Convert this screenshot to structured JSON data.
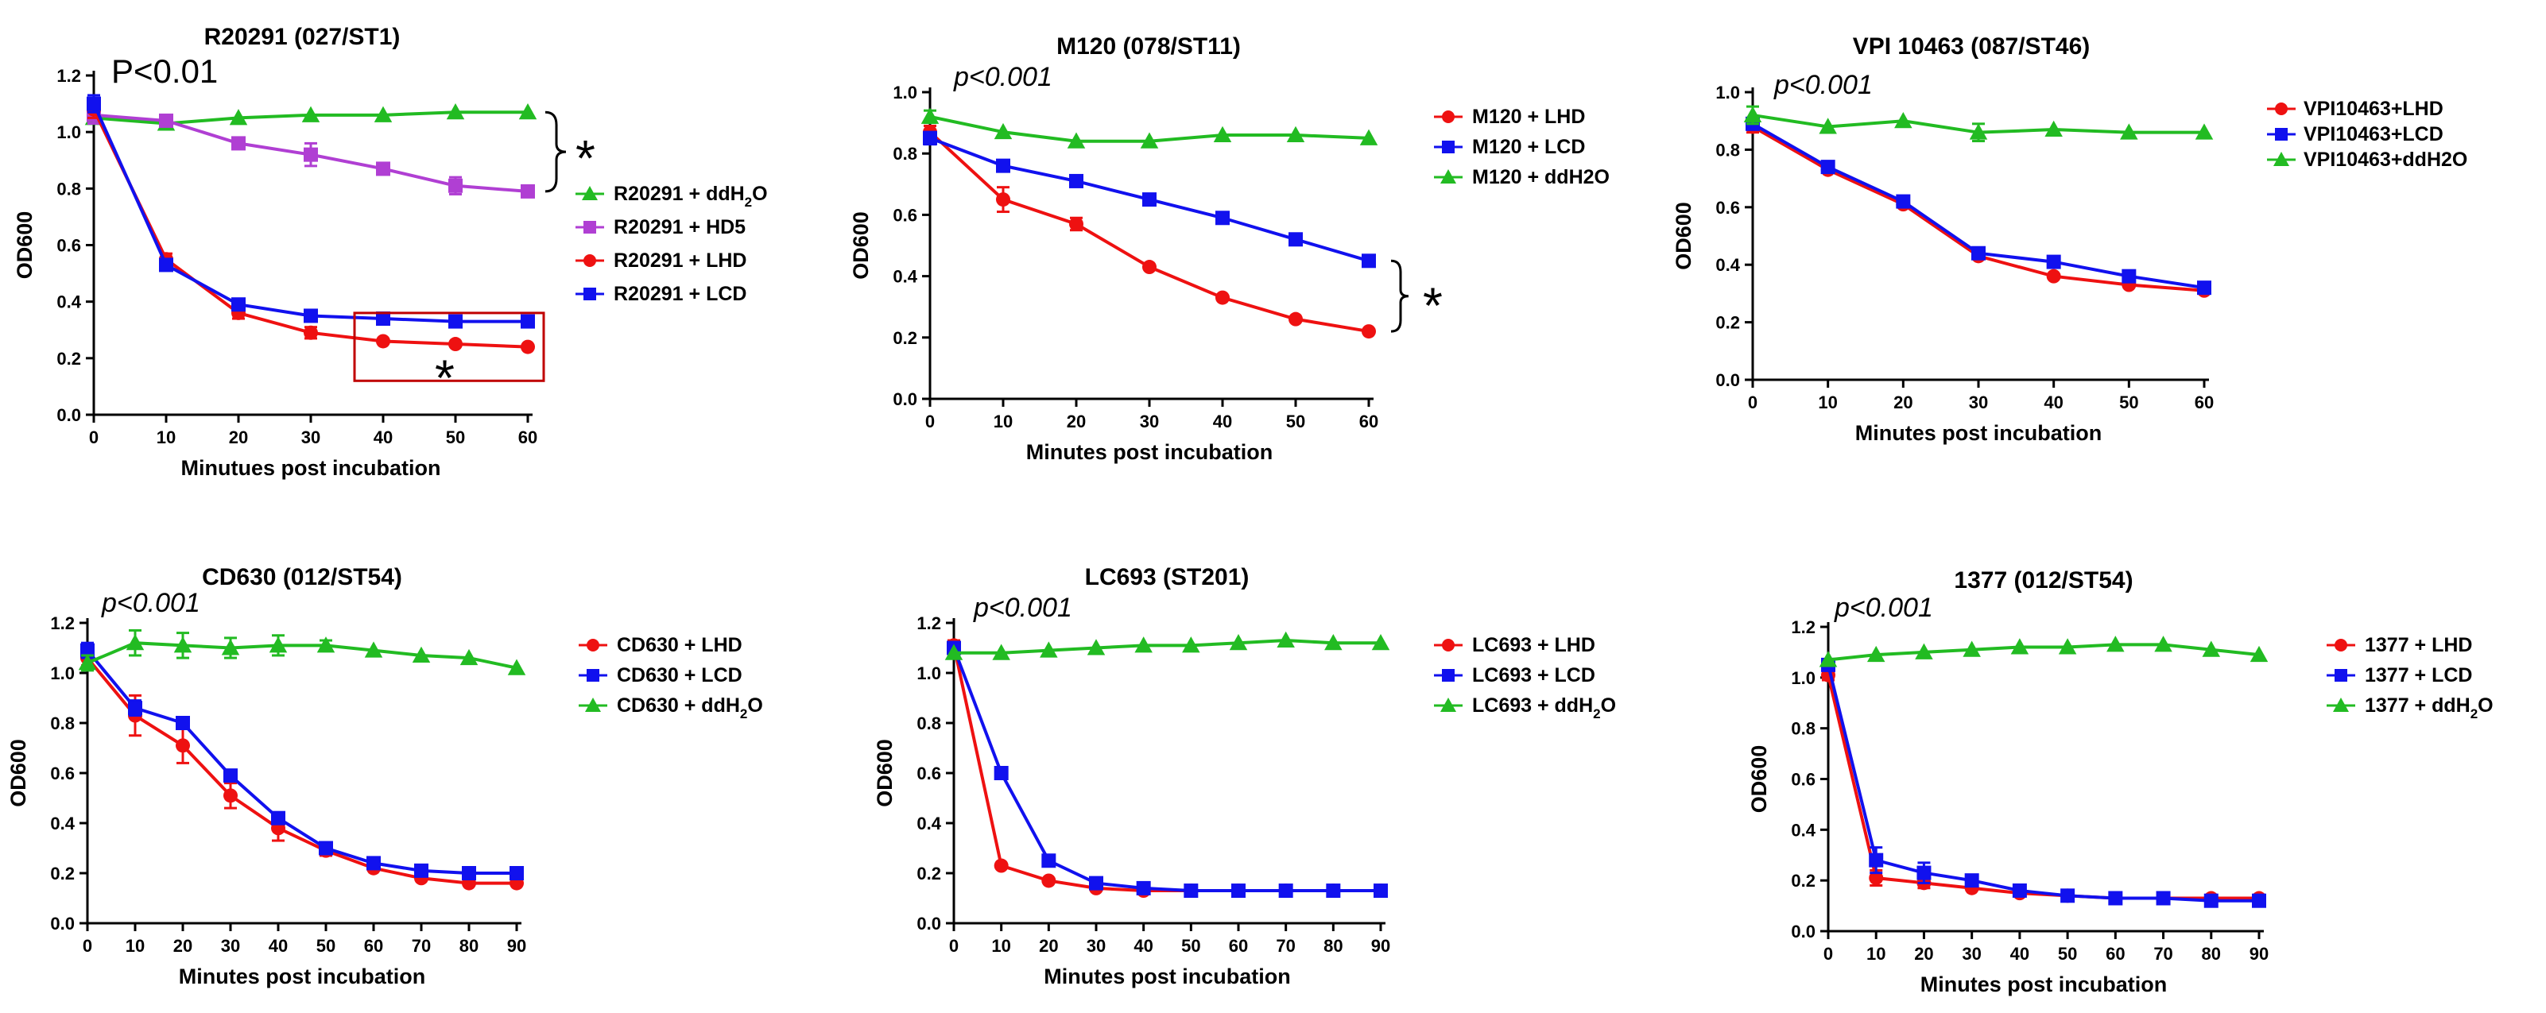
{
  "figure": {
    "description": "Six line charts of OD600 versus minutes post incubation"
  },
  "colors": {
    "red": "#ee1111",
    "blue": "#1111ee",
    "green": "#22bb22",
    "purple": "#b03fd3",
    "axis": "#000000",
    "box": "#c00000"
  },
  "chart_data": [
    {
      "type": "line",
      "title": "R20291  (027/ST1)",
      "pvalue": "P<0.01",
      "pvalue_italic": false,
      "xlabel": "Minutues post incubation",
      "ylabel": "OD600",
      "xlim": [
        0,
        60
      ],
      "ylim": [
        0,
        1.2
      ],
      "xticks": [
        0,
        10,
        20,
        30,
        40,
        50,
        60
      ],
      "yticks": [
        0.0,
        0.2,
        0.4,
        0.6,
        0.8,
        1.0,
        1.2
      ],
      "x": [
        0,
        10,
        20,
        30,
        40,
        50,
        60
      ],
      "series": [
        {
          "name": "R20291 + ddH2O",
          "label_main": "R20291 + ddH",
          "label_sub": "2",
          "label_tail": "O",
          "color": "green",
          "marker": "triangle",
          "values": [
            1.05,
            1.03,
            1.05,
            1.06,
            1.06,
            1.07,
            1.07
          ],
          "errors": [
            0.02,
            0.01,
            0.01,
            0.01,
            0.01,
            0.01,
            0.01
          ]
        },
        {
          "name": "R20291 + HD5",
          "color": "purple",
          "marker": "square",
          "values": [
            1.06,
            1.04,
            0.96,
            0.92,
            0.87,
            0.81,
            0.79
          ],
          "errors": [
            0.03,
            0.02,
            0.02,
            0.04,
            0.02,
            0.03,
            0.02
          ]
        },
        {
          "name": "R20291 + LHD",
          "color": "red",
          "marker": "circle",
          "values": [
            1.08,
            0.55,
            0.36,
            0.29,
            0.26,
            0.25,
            0.24
          ],
          "errors": [
            0.03,
            0.02,
            0.02,
            0.02,
            0.01,
            0.01,
            0.01
          ]
        },
        {
          "name": "R20291 + LCD",
          "color": "blue",
          "marker": "square",
          "values": [
            1.1,
            0.53,
            0.39,
            0.35,
            0.34,
            0.33,
            0.33
          ],
          "errors": [
            0.03,
            0.02,
            0.02,
            0.01,
            0.01,
            0.01,
            0.01
          ]
        }
      ],
      "annotations": [
        "*",
        "*"
      ]
    },
    {
      "type": "line",
      "title": "M120 (078/ST11)",
      "pvalue": "p<0.001",
      "pvalue_italic": true,
      "xlabel": "Minutes post incubation",
      "ylabel": "OD600",
      "xlim": [
        0,
        60
      ],
      "ylim": [
        0,
        1.0
      ],
      "xticks": [
        0,
        10,
        20,
        30,
        40,
        50,
        60
      ],
      "yticks": [
        0.0,
        0.2,
        0.4,
        0.6,
        0.8,
        1.0
      ],
      "x": [
        0,
        10,
        20,
        30,
        40,
        50,
        60
      ],
      "series": [
        {
          "name": "M120 + LHD",
          "color": "red",
          "marker": "circle",
          "values": [
            0.87,
            0.65,
            0.57,
            0.43,
            0.33,
            0.26,
            0.22
          ],
          "errors": [
            0.02,
            0.04,
            0.02,
            0.01,
            0.01,
            0.01,
            0.01
          ]
        },
        {
          "name": "M120 + LCD",
          "color": "blue",
          "marker": "square",
          "values": [
            0.85,
            0.76,
            0.71,
            0.65,
            0.59,
            0.52,
            0.45
          ],
          "errors": [
            0.02,
            0.01,
            0.01,
            0.01,
            0.01,
            0.01,
            0.01
          ]
        },
        {
          "name": "M120 + ddH2O",
          "color": "green",
          "marker": "triangle",
          "values": [
            0.92,
            0.87,
            0.84,
            0.84,
            0.86,
            0.86,
            0.85
          ],
          "errors": [
            0.02,
            0.01,
            0.01,
            0.01,
            0.01,
            0.01,
            0.01
          ]
        }
      ],
      "annotations": [
        "*"
      ]
    },
    {
      "type": "line",
      "title": "VPI 10463 (087/ST46)",
      "pvalue": "p<0.001",
      "pvalue_italic": true,
      "xlabel": "Minutes post incubation",
      "ylabel": "OD600",
      "xlim": [
        0,
        60
      ],
      "ylim": [
        0,
        1.0
      ],
      "xticks": [
        0,
        10,
        20,
        30,
        40,
        50,
        60
      ],
      "yticks": [
        0.0,
        0.2,
        0.4,
        0.6,
        0.8,
        1.0
      ],
      "x": [
        0,
        10,
        20,
        30,
        40,
        50,
        60
      ],
      "series": [
        {
          "name": "VPI10463+LHD",
          "color": "red",
          "marker": "circle",
          "values": [
            0.88,
            0.73,
            0.61,
            0.43,
            0.36,
            0.33,
            0.31
          ],
          "errors": [
            0.02,
            0.01,
            0.01,
            0.01,
            0.01,
            0.01,
            0.01
          ]
        },
        {
          "name": "VPI10463+LCD",
          "color": "blue",
          "marker": "square",
          "values": [
            0.89,
            0.74,
            0.62,
            0.44,
            0.41,
            0.36,
            0.32
          ],
          "errors": [
            0.02,
            0.01,
            0.01,
            0.01,
            0.01,
            0.01,
            0.01
          ]
        },
        {
          "name": "VPI10463+ddH2O",
          "color": "green",
          "marker": "triangle",
          "values": [
            0.92,
            0.88,
            0.9,
            0.86,
            0.87,
            0.86,
            0.86
          ],
          "errors": [
            0.03,
            0.01,
            0.01,
            0.03,
            0.01,
            0.01,
            0.01
          ]
        }
      ],
      "annotations": []
    },
    {
      "type": "line",
      "title": "CD630 (012/ST54)",
      "pvalue": "p<0.001",
      "pvalue_italic": true,
      "xlabel": "Minutes post incubation",
      "ylabel": "OD600",
      "xlim": [
        0,
        90
      ],
      "ylim": [
        0,
        1.2
      ],
      "xticks": [
        0,
        10,
        20,
        30,
        40,
        50,
        60,
        70,
        80,
        90
      ],
      "yticks": [
        0.0,
        0.2,
        0.4,
        0.6,
        0.8,
        1.0,
        1.2
      ],
      "x": [
        0,
        10,
        20,
        30,
        40,
        50,
        60,
        70,
        80,
        90
      ],
      "series": [
        {
          "name": "CD630 + LHD",
          "color": "red",
          "marker": "circle",
          "values": [
            1.06,
            0.83,
            0.71,
            0.51,
            0.38,
            0.29,
            0.22,
            0.18,
            0.16,
            0.16
          ],
          "errors": [
            0.03,
            0.08,
            0.07,
            0.05,
            0.05,
            0.02,
            0.01,
            0.01,
            0.01,
            0.01
          ]
        },
        {
          "name": "CD630 + LCD",
          "color": "blue",
          "marker": "square",
          "values": [
            1.09,
            0.86,
            0.8,
            0.59,
            0.42,
            0.3,
            0.24,
            0.21,
            0.2,
            0.2
          ],
          "errors": [
            0.03,
            0.03,
            0.02,
            0.02,
            0.02,
            0.02,
            0.01,
            0.01,
            0.01,
            0.01
          ]
        },
        {
          "name": "CD630 + ddH2O",
          "label_main": "CD630 + ddH",
          "label_sub": "2",
          "label_tail": "O",
          "color": "green",
          "marker": "triangle",
          "values": [
            1.04,
            1.12,
            1.11,
            1.1,
            1.11,
            1.11,
            1.09,
            1.07,
            1.06,
            1.02
          ],
          "errors": [
            0.03,
            0.05,
            0.05,
            0.04,
            0.04,
            0.02,
            0.01,
            0.01,
            0.01,
            0.01
          ]
        }
      ],
      "annotations": []
    },
    {
      "type": "line",
      "title": "LC693 (ST201)",
      "pvalue": "p<0.001",
      "pvalue_italic": true,
      "xlabel": "Minutes post incubation",
      "ylabel": "OD600",
      "xlim": [
        0,
        90
      ],
      "ylim": [
        0,
        1.2
      ],
      "xticks": [
        0,
        10,
        20,
        30,
        40,
        50,
        60,
        70,
        80,
        90
      ],
      "yticks": [
        0.0,
        0.2,
        0.4,
        0.6,
        0.8,
        1.0,
        1.2
      ],
      "x": [
        0,
        10,
        20,
        30,
        40,
        50,
        60,
        70,
        80,
        90
      ],
      "series": [
        {
          "name": "LC693 + LHD",
          "color": "red",
          "marker": "circle",
          "values": [
            1.11,
            0.23,
            0.17,
            0.14,
            0.13,
            0.13,
            0.13,
            0.13,
            0.13,
            0.13
          ],
          "errors": [
            0.02,
            0.01,
            0.01,
            0.01,
            0.01,
            0.01,
            0.01,
            0.01,
            0.01,
            0.01
          ]
        },
        {
          "name": "LC693 + LCD",
          "color": "blue",
          "marker": "square",
          "values": [
            1.1,
            0.6,
            0.25,
            0.16,
            0.14,
            0.13,
            0.13,
            0.13,
            0.13,
            0.13
          ],
          "errors": [
            0.02,
            0.02,
            0.01,
            0.01,
            0.01,
            0.01,
            0.01,
            0.01,
            0.01,
            0.01
          ]
        },
        {
          "name": "LC693 + ddH2O",
          "label_main": "LC693 + ddH",
          "label_sub": "2",
          "label_tail": "O",
          "color": "green",
          "marker": "triangle",
          "values": [
            1.08,
            1.08,
            1.09,
            1.1,
            1.11,
            1.11,
            1.12,
            1.13,
            1.12,
            1.12
          ],
          "errors": [
            0.01,
            0.01,
            0.01,
            0.01,
            0.01,
            0.01,
            0.01,
            0.01,
            0.01,
            0.01
          ]
        }
      ],
      "annotations": []
    },
    {
      "type": "line",
      "title": "1377 (012/ST54)",
      "pvalue": "p<0.001",
      "pvalue_italic": true,
      "xlabel": "Minutes post incubation",
      "ylabel": "OD600",
      "xlim": [
        0,
        90
      ],
      "ylim": [
        0,
        1.2
      ],
      "xticks": [
        0,
        10,
        20,
        30,
        40,
        50,
        60,
        70,
        80,
        90
      ],
      "yticks": [
        0.0,
        0.2,
        0.4,
        0.6,
        0.8,
        1.0,
        1.2
      ],
      "x": [
        0,
        10,
        20,
        30,
        40,
        50,
        60,
        70,
        80,
        90
      ],
      "series": [
        {
          "name": "1377 + LHD",
          "color": "red",
          "marker": "circle",
          "values": [
            1.01,
            0.21,
            0.19,
            0.17,
            0.15,
            0.14,
            0.13,
            0.13,
            0.13,
            0.13
          ],
          "errors": [
            0.02,
            0.03,
            0.02,
            0.01,
            0.01,
            0.01,
            0.01,
            0.01,
            0.01,
            0.01
          ]
        },
        {
          "name": "1377 + LCD",
          "color": "blue",
          "marker": "square",
          "values": [
            1.05,
            0.28,
            0.23,
            0.2,
            0.16,
            0.14,
            0.13,
            0.13,
            0.12,
            0.12
          ],
          "errors": [
            0.02,
            0.05,
            0.04,
            0.02,
            0.01,
            0.01,
            0.01,
            0.01,
            0.01,
            0.01
          ]
        },
        {
          "name": "1377 + ddH2O",
          "label_main": "1377 + ddH",
          "label_sub": "2",
          "label_tail": "O",
          "color": "green",
          "marker": "triangle",
          "values": [
            1.07,
            1.09,
            1.1,
            1.11,
            1.12,
            1.12,
            1.13,
            1.13,
            1.11,
            1.09
          ],
          "errors": [
            0.01,
            0.01,
            0.01,
            0.01,
            0.01,
            0.01,
            0.01,
            0.01,
            0.01,
            0.01
          ]
        }
      ],
      "annotations": []
    }
  ]
}
